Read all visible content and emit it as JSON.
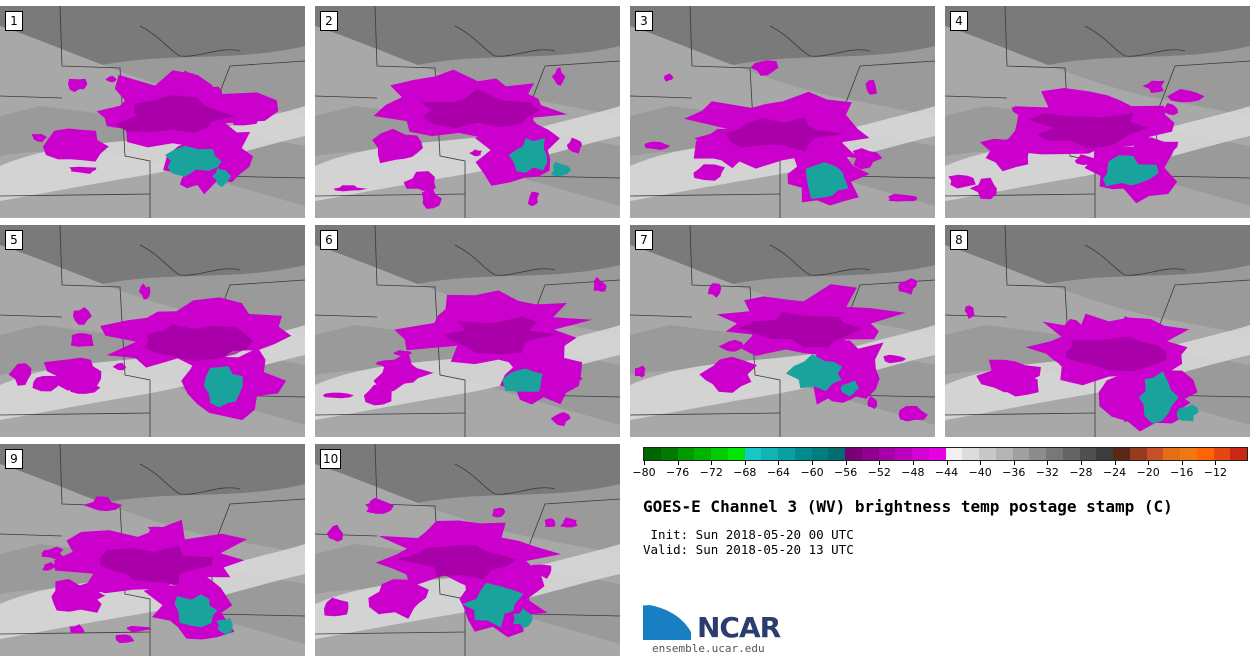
{
  "panels": [
    {
      "label": "1",
      "seed": 1
    },
    {
      "label": "2",
      "seed": 2
    },
    {
      "label": "3",
      "seed": 3
    },
    {
      "label": "4",
      "seed": 4
    },
    {
      "label": "5",
      "seed": 5
    },
    {
      "label": "6",
      "seed": 6
    },
    {
      "label": "7",
      "seed": 7
    },
    {
      "label": "8",
      "seed": 8
    },
    {
      "label": "9",
      "seed": 9
    },
    {
      "label": "10",
      "seed": 10
    }
  ],
  "colorbar": {
    "colors": [
      "#006400",
      "#007a00",
      "#009a00",
      "#00b400",
      "#00cc00",
      "#00e600",
      "#18c8c8",
      "#10b4b4",
      "#08a0a0",
      "#008c8c",
      "#007d7d",
      "#006e6e",
      "#7a0078",
      "#900090",
      "#a800a8",
      "#be00be",
      "#d400d4",
      "#e600e6",
      "#f0f0f0",
      "#dcdcdc",
      "#c8c8c8",
      "#b4b4b4",
      "#a0a0a0",
      "#8c8c8c",
      "#787878",
      "#646464",
      "#505050",
      "#3c3c3c",
      "#5a2814",
      "#963c1e",
      "#c85028",
      "#e66e14",
      "#f07814",
      "#ff6400",
      "#e64614",
      "#c82814"
    ],
    "tick_labels": [
      "−80",
      "−76",
      "−72",
      "−68",
      "−64",
      "−60",
      "−56",
      "−52",
      "−48",
      "−44",
      "−40",
      "−36",
      "−32",
      "−28",
      "−24",
      "−20",
      "−16",
      "−12"
    ]
  },
  "title": "GOES-E Channel 3 (WV) brightness temp postage stamp (C)",
  "init_text": " Init: Sun 2018-05-20 00 UTC",
  "valid_text": "Valid: Sun 2018-05-20 13 UTC",
  "logo": {
    "text": "NCAR",
    "url": "ensemble.ucar.edu",
    "blue": "#1a7ec3"
  },
  "colors": {
    "magenta": "#cc00cc",
    "dark_magenta": "#9a009a",
    "teal": "#1aa39c",
    "light_band": "#dadada",
    "mid_gray": "#a8a8a8",
    "dark_gray": "#7a7a7a"
  }
}
